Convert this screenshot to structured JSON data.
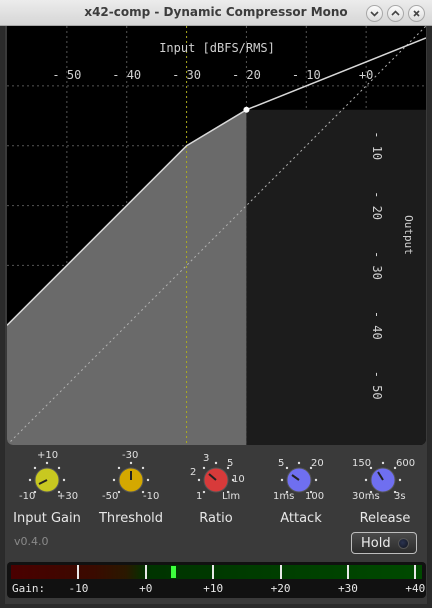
{
  "window": {
    "title": "x42-comp - Dynamic Compressor Mono",
    "buttons": [
      "minimize",
      "maximize",
      "close"
    ]
  },
  "graph": {
    "input_label": "Input [dBFS/RMS]",
    "output_label": "Output",
    "x_ticks": [
      "-50",
      "-40",
      "-30",
      "-20",
      "-10",
      "+0"
    ],
    "y_ticks": [
      "-10",
      "-20",
      "-30",
      "-40",
      "-50"
    ]
  },
  "chart_data": {
    "type": "line",
    "xlabel": "Input [dBFS/RMS]",
    "ylabel": "Output",
    "xlim": [
      -60,
      10
    ],
    "ylim": [
      -60,
      10
    ],
    "threshold": -30,
    "input_gain": 0,
    "ratio_line": {
      "x": [
        -60,
        -30,
        -20,
        10
      ],
      "y": [
        -40,
        -10,
        -4,
        8
      ]
    },
    "unity": {
      "x": [
        -60,
        10
      ],
      "y": [
        -60,
        10
      ]
    },
    "current_point": {
      "x": -20,
      "y": -4
    }
  },
  "knobs": [
    {
      "name": "input-gain",
      "label": "Input Gain",
      "color": "#c8c820",
      "ticks": [
        "+10",
        "-10",
        "+30"
      ]
    },
    {
      "name": "threshold",
      "label": "Threshold",
      "color": "#d4a800",
      "ticks": [
        "-30",
        "-50",
        "-10"
      ]
    },
    {
      "name": "ratio",
      "label": "Ratio",
      "color": "#d83a3a",
      "ticks": [
        "3",
        "2",
        "5",
        "1",
        "10",
        "Lim"
      ]
    },
    {
      "name": "attack",
      "label": "Attack",
      "color": "#6f6ff0",
      "ticks": [
        "5",
        "20",
        "1ms",
        "100"
      ]
    },
    {
      "name": "release",
      "label": "Release",
      "color": "#6f6ff0",
      "ticks": [
        "150",
        "600",
        "30ms",
        "3s"
      ]
    }
  ],
  "version": "v0.4.0",
  "hold": {
    "label": "Hold",
    "active": false
  },
  "meter": {
    "label": "Gain:",
    "scale": [
      "-10",
      "+0",
      "+10",
      "+20",
      "+30",
      "+40"
    ],
    "value_db": 4
  }
}
